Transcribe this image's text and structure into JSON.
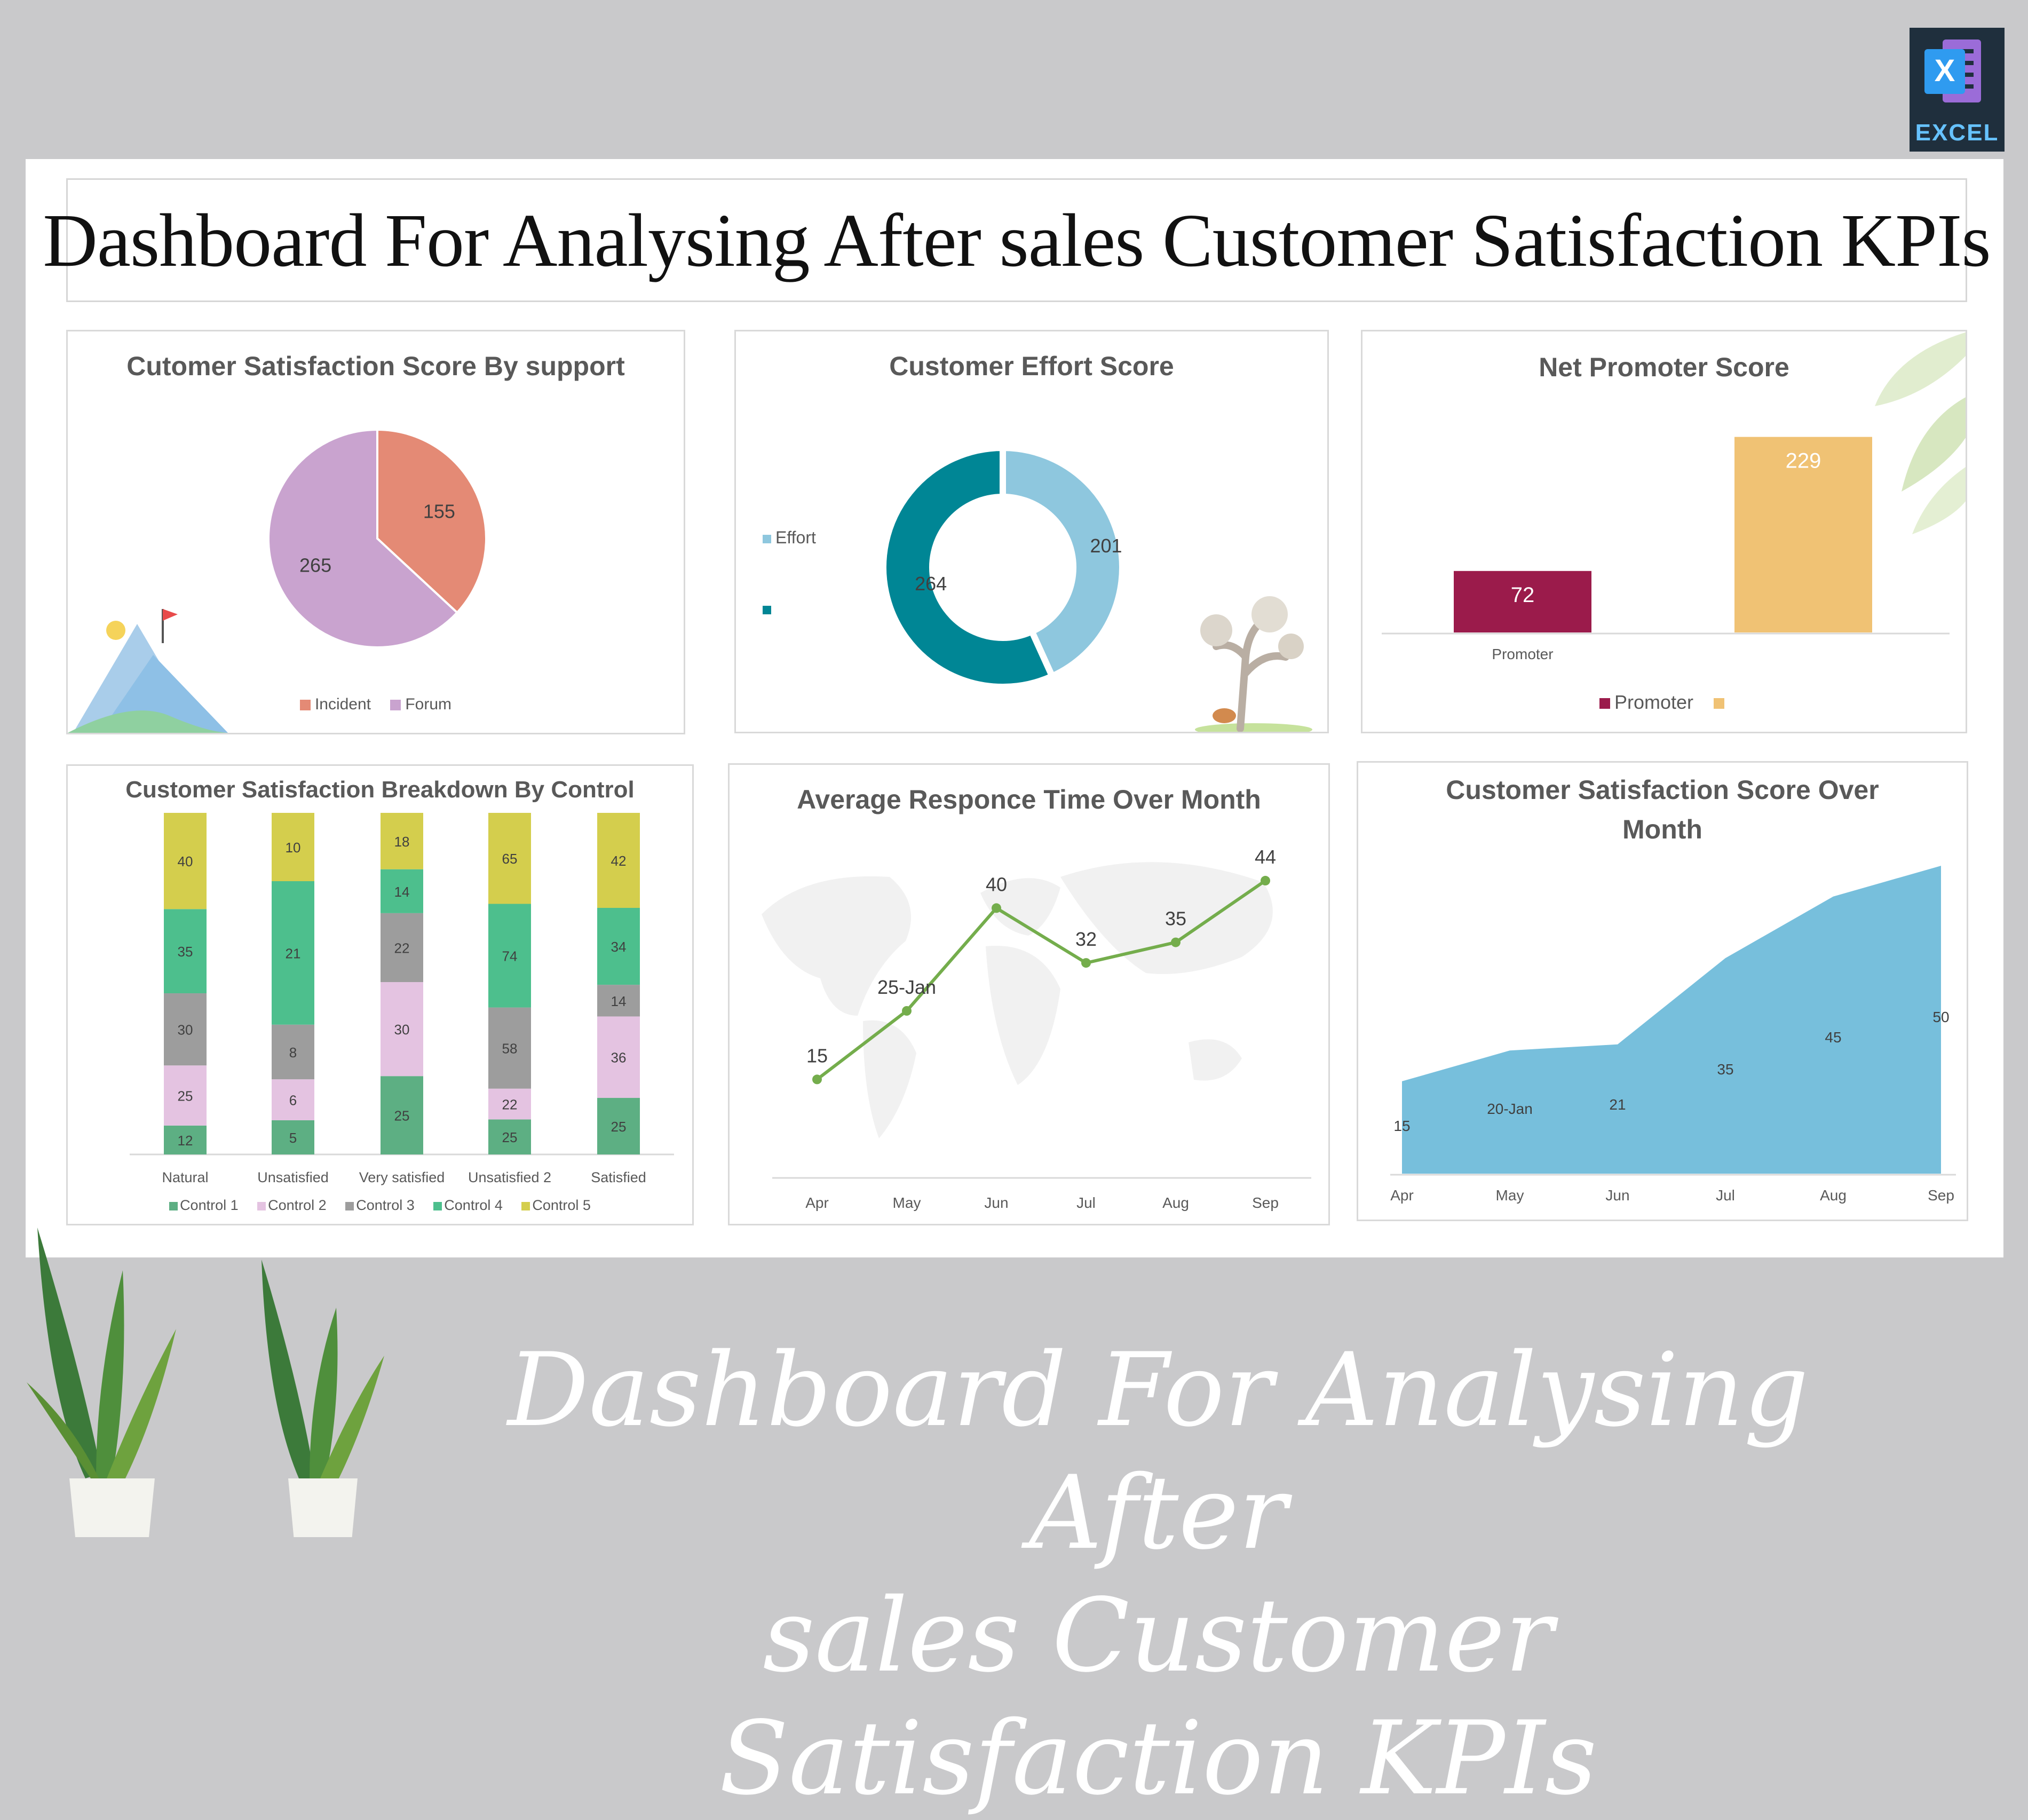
{
  "dashboard": {
    "title": "Dashboard For Analysing After sales Customer Satisfaction KPIs",
    "caption_line1": "Dashboard For Analysing After",
    "caption_line2": "sales Customer Satisfaction KPIs",
    "badge_label": "EXCEL",
    "badge_letter": "X"
  },
  "colors": {
    "incident": "#e48a75",
    "forum": "#c9a3cf",
    "effort": "#8ec7de",
    "effort2": "#008695",
    "promoter": "#9b1b4b",
    "promoter2": "#f0c274",
    "control1": "#5daf83",
    "control2": "#e4c3e1",
    "control3": "#9d9d9d",
    "control4": "#4dbf8d",
    "control5": "#d4ce4d",
    "line": "#74ad4c",
    "area": "#77bfdc"
  },
  "chart_data": [
    {
      "type": "pie",
      "title": "Cutomer Satisfaction Score By support",
      "categories": [
        "Incident",
        "Forum"
      ],
      "values": [
        155,
        265
      ],
      "legend": "bottom"
    },
    {
      "type": "donut",
      "title": "Customer Effort Score",
      "categories": [
        "Effort",
        ""
      ],
      "values": [
        201,
        264
      ],
      "legend": "left"
    },
    {
      "type": "bar",
      "title": "Net Promoter Score",
      "categories": [
        "Promoter",
        ""
      ],
      "values": [
        72,
        229
      ],
      "legend_entries": [
        "Promoter",
        ""
      ],
      "legend": "bottom"
    },
    {
      "type": "bar",
      "stacked": true,
      "title": "Customer Satisfaction Breakdown By Control",
      "categories": [
        "Natural",
        "Unsatisfied",
        "Very satisfied",
        "Unsatisfied 2",
        "Satisfied"
      ],
      "series": [
        {
          "name": "Control 1",
          "values": [
            12,
            5,
            25,
            25,
            25
          ]
        },
        {
          "name": "Control 2",
          "values": [
            25,
            6,
            30,
            22,
            36
          ]
        },
        {
          "name": "Control 3",
          "values": [
            30,
            8,
            22,
            58,
            14
          ]
        },
        {
          "name": "Control 4",
          "values": [
            35,
            21,
            14,
            74,
            34
          ]
        },
        {
          "name": "Control 5",
          "values": [
            40,
            10,
            18,
            65,
            42
          ]
        }
      ],
      "legend": "bottom"
    },
    {
      "type": "line",
      "title": "Average Responce Time Over Month",
      "categories": [
        "Apr",
        "May",
        "Jun",
        "Jul",
        "Aug",
        "Sep"
      ],
      "values": [
        15,
        25,
        40,
        32,
        35,
        44
      ],
      "data_labels": [
        "15",
        "25-Jan",
        "40",
        "32",
        "35",
        "44"
      ],
      "ylim": [
        0,
        50
      ],
      "grid": false
    },
    {
      "type": "area",
      "title_line1": "Customer Satisfaction Score Over",
      "title_line2": "Month",
      "categories": [
        "Apr",
        "May",
        "Jun",
        "Jul",
        "Aug",
        "Sep"
      ],
      "values": [
        15,
        20,
        21,
        35,
        45,
        50
      ],
      "data_labels": [
        "15",
        "20-Jan",
        "21",
        "35",
        "45",
        "50"
      ],
      "ylim": [
        0,
        52
      ],
      "grid": false
    }
  ]
}
